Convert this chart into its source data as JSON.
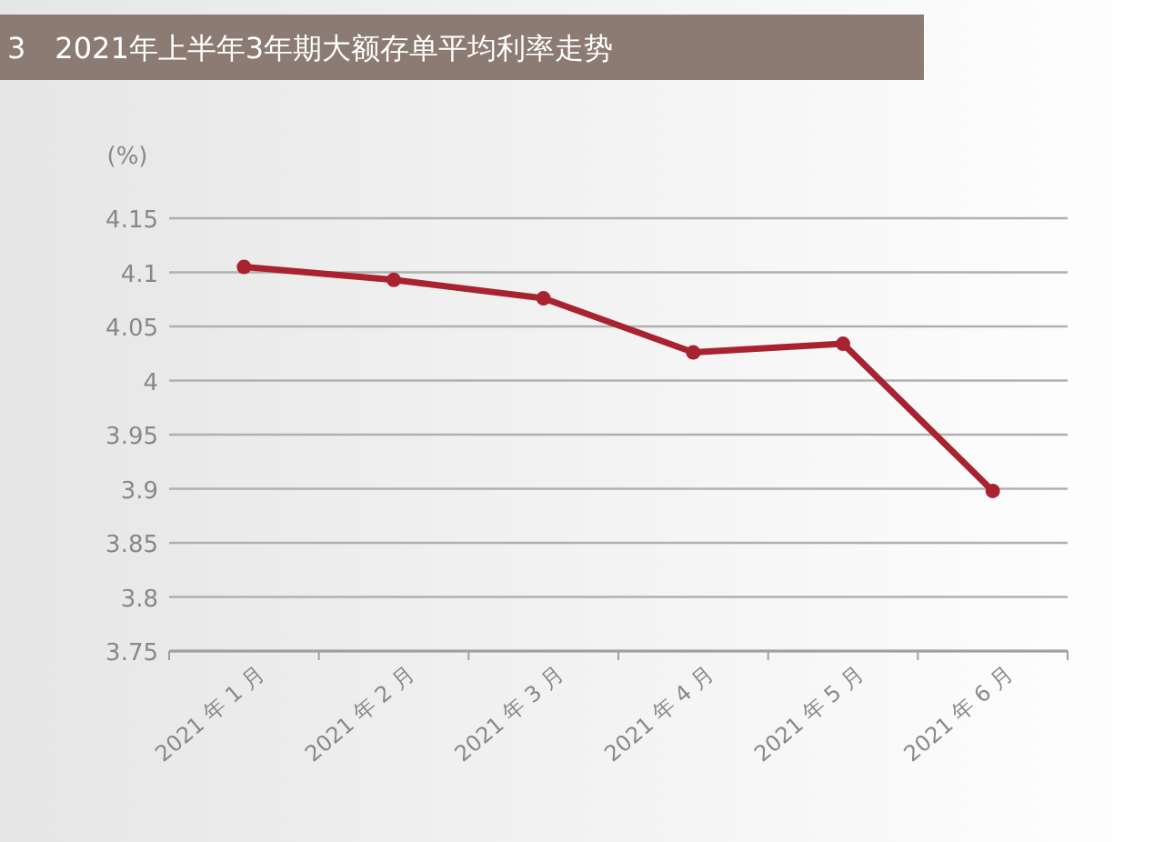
{
  "chart_data": {
    "type": "line",
    "title": "3　2021年上半年3年期大额存单平均利率走势",
    "ylabel": "(%)",
    "categories": [
      "2021 年 1 月",
      "2021 年 2 月",
      "2021 年 3 月",
      "2021 年 4 月",
      "2021 年 5 月",
      "2021 年 6 月"
    ],
    "series": [
      {
        "color": "#a8232f",
        "values": [
          4.105,
          4.093,
          4.076,
          4.026,
          4.034,
          3.898
        ]
      }
    ],
    "ylim": [
      3.75,
      4.15
    ],
    "yticks": [
      3.75,
      3.8,
      3.85,
      3.9,
      3.95,
      4,
      4.05,
      4.1,
      4.15
    ],
    "grid": "y",
    "marker": "circle",
    "line_style": "solid"
  }
}
